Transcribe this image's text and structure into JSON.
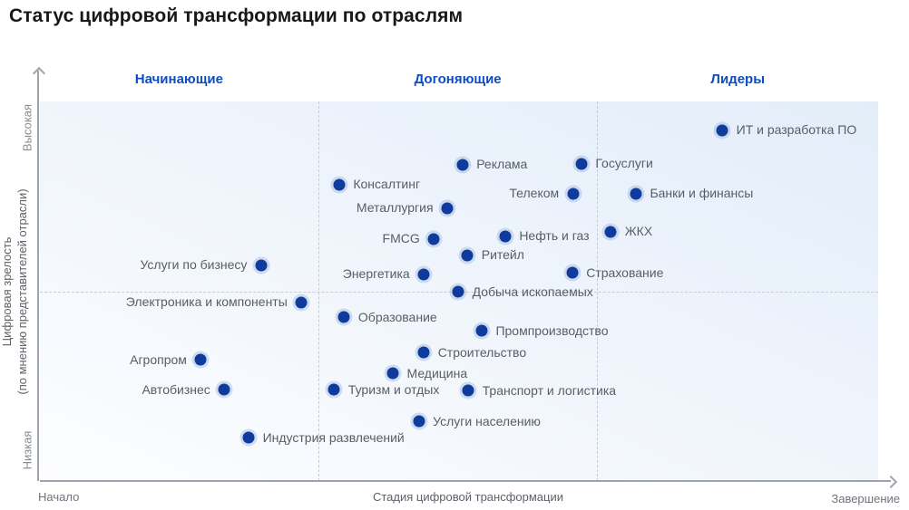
{
  "colors": {
    "dot": "#0e3b9c",
    "dot_halo": "rgba(160,185,225,0.45)",
    "zone_label": "#0c4ec2",
    "point_label": "#585e66",
    "axis_line": "#9ea4ab",
    "grid_dashed": "#c7ccd4",
    "title": "#17181a",
    "plot_bg_from": "#fcfdff",
    "plot_bg_to": "#e3edf9"
  },
  "chart_data": {
    "type": "scatter",
    "title": "Статус цифровой трансформации по отраслям",
    "xlabel": "Стадия цифровой трансформации",
    "ylabel_line1": "Цифровая зрелость",
    "ylabel_line2": "(по мнению представителей отрасли)",
    "x_axis_end_labels": {
      "min": "Начало",
      "max": "Завершение"
    },
    "y_axis_end_labels": {
      "min": "Низкая",
      "max": "Высокая"
    },
    "zones": [
      "Начинающие",
      "Догоняющие",
      "Лидеры"
    ],
    "grid": {
      "vertical_pct": [
        33.2,
        66.5
      ],
      "horizontal_pct": [
        50
      ],
      "style": "dashed"
    },
    "axis_scale": "qualitative 0-100 (no numeric ticks shown)",
    "legend": "none",
    "points": [
      {
        "label": "ИТ и разработка ПО",
        "x": 81.4,
        "y": 92.4,
        "side": "right"
      },
      {
        "label": "Госуслуги",
        "x": 64.6,
        "y": 83.6,
        "side": "right"
      },
      {
        "label": "Реклама",
        "x": 50.4,
        "y": 83.3,
        "side": "right"
      },
      {
        "label": "Консалтинг",
        "x": 35.7,
        "y": 78.1,
        "side": "right"
      },
      {
        "label": "Телеком",
        "x": 63.6,
        "y": 75.7,
        "side": "left"
      },
      {
        "label": "Банки и финансы",
        "x": 71.1,
        "y": 75.7,
        "side": "right"
      },
      {
        "label": "Металлургия",
        "x": 48.6,
        "y": 71.9,
        "side": "left"
      },
      {
        "label": "ЖКХ",
        "x": 68.1,
        "y": 65.7,
        "side": "right"
      },
      {
        "label": "Нефть и газ",
        "x": 55.5,
        "y": 64.5,
        "side": "right"
      },
      {
        "label": "FMCG",
        "x": 47.0,
        "y": 63.8,
        "side": "left"
      },
      {
        "label": "Ритейл",
        "x": 51.0,
        "y": 59.5,
        "side": "right"
      },
      {
        "label": "Услуги по бизнесу",
        "x": 26.4,
        "y": 56.9,
        "side": "left"
      },
      {
        "label": "Страхование",
        "x": 63.5,
        "y": 54.8,
        "side": "right"
      },
      {
        "label": "Энергетика",
        "x": 45.8,
        "y": 54.5,
        "side": "left"
      },
      {
        "label": "Добыча ископаемых",
        "x": 49.9,
        "y": 49.8,
        "side": "right"
      },
      {
        "label": "Электроника и компоненты",
        "x": 31.2,
        "y": 47.1,
        "side": "left"
      },
      {
        "label": "Образование",
        "x": 36.3,
        "y": 43.1,
        "side": "right"
      },
      {
        "label": "Промпроизводство",
        "x": 52.7,
        "y": 39.5,
        "side": "right"
      },
      {
        "label": "Строительство",
        "x": 45.8,
        "y": 33.8,
        "side": "right"
      },
      {
        "label": "Агропром",
        "x": 19.2,
        "y": 31.9,
        "side": "left"
      },
      {
        "label": "Медицина",
        "x": 42.1,
        "y": 28.3,
        "side": "right"
      },
      {
        "label": "Автобизнес",
        "x": 22.0,
        "y": 24.0,
        "side": "left"
      },
      {
        "label": "Туризм и отдых",
        "x": 35.1,
        "y": 24.0,
        "side": "right"
      },
      {
        "label": "Транспорт и логистика",
        "x": 51.1,
        "y": 23.8,
        "side": "right"
      },
      {
        "label": "Услуги населению",
        "x": 45.2,
        "y": 15.7,
        "side": "right"
      },
      {
        "label": "Индустрия развлечений",
        "x": 24.9,
        "y": 11.4,
        "side": "right"
      }
    ]
  }
}
